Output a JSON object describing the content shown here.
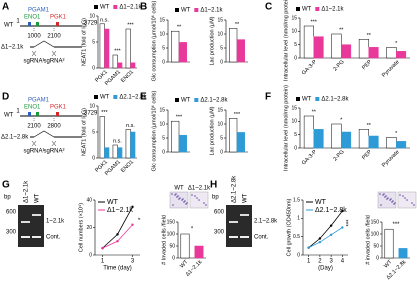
{
  "panel_labels": [
    "A",
    "B",
    "C",
    "D",
    "E",
    "F",
    "G",
    "H"
  ],
  "diagrams": [
    {
      "genes": [
        "PGAM1",
        "ENO1",
        "PGK1"
      ],
      "wt": "WT",
      "start": 1,
      "end": 3729,
      "cut_start": 1000,
      "cut_end": 2100,
      "mutant": "Δ1~2.1k",
      "sgrnas": [
        "sgRNA¹",
        "sgRNA²"
      ]
    },
    {
      "genes": [
        "PGAM1",
        "ENO1",
        "PGK1"
      ],
      "wt": "WT",
      "start": 1,
      "end": 3729,
      "cut_start": 2100,
      "cut_end": 2800,
      "mutant": "Δ2.1~2.8k",
      "sgrnas": [
        "sgRNA¹",
        "sgRNA²"
      ]
    }
  ],
  "gels": [
    {
      "unit": "bp",
      "markers": [
        600,
        300
      ],
      "lanes": [
        "Δ1~2.1k",
        "WT"
      ],
      "bands": [
        "1~2.1k",
        "Cont."
      ],
      "micrographs": [
        "WT",
        "Δ1~2.1k"
      ]
    },
    {
      "unit": "bp",
      "markers": [
        600,
        300
      ],
      "lanes": [
        "Δ2.1~2.8k",
        "WT"
      ],
      "bands": [
        "2.1~2.8k",
        "Cont."
      ]
    }
  ],
  "chart_data": [
    {
      "type": "bar",
      "ylabel": "NEAT1 (fold of IgG)",
      "categories": [
        "PGK1",
        "PGAM1",
        "ENO1"
      ],
      "ylim": [
        0,
        10
      ],
      "yticks": [
        0,
        5,
        10
      ],
      "legend": "above",
      "series": [
        {
          "name": "WT",
          "color": "#ffffff",
          "values": [
            8.5,
            2.5,
            7.5
          ]
        },
        {
          "name": "Δ1~2.1k",
          "color": "#e8389a",
          "values": [
            7.5,
            1.0,
            1.0
          ]
        }
      ],
      "annotations": [
        "n.s.",
        "***",
        "***"
      ]
    },
    {
      "type": "bar",
      "ylabel": "Glc consumption (µmol/10⁶ cells)",
      "categories": [
        null
      ],
      "ylim": [
        0,
        15
      ],
      "yticks": [
        0,
        5,
        10,
        15
      ],
      "legend": "above",
      "series": [
        {
          "name": "WT",
          "color": "#ffffff",
          "values": [
            11
          ]
        },
        {
          "name": "Δ1~2.1k",
          "color": "#e8389a",
          "values": [
            7
          ]
        }
      ],
      "annotations": [
        "**"
      ]
    },
    {
      "type": "bar",
      "ylabel": "Lac production (µM)",
      "categories": [
        null
      ],
      "ylim": [
        0,
        15
      ],
      "yticks": [
        0,
        5,
        10,
        15
      ],
      "series": [
        {
          "color": "#ffffff",
          "values": [
            12
          ]
        },
        {
          "color": "#e8389a",
          "values": [
            8
          ]
        }
      ],
      "annotations": [
        "**"
      ]
    },
    {
      "type": "bar",
      "ylabel": "Intracellular level (nmol/mg protein)",
      "categories": [
        "GA-3-P",
        "2-PG",
        "PEP",
        "Pyruvate"
      ],
      "ylim": [
        0,
        15
      ],
      "yticks": [
        0,
        5,
        10,
        15
      ],
      "legend": "above",
      "series": [
        {
          "name": "WT",
          "color": "#ffffff",
          "values": [
            12,
            9,
            7,
            4
          ]
        },
        {
          "name": "Δ1~2.1k",
          "color": "#e8389a",
          "values": [
            8,
            5,
            4,
            2.5
          ]
        }
      ],
      "annotations": [
        "***",
        "**",
        "**",
        "*"
      ]
    },
    {
      "type": "bar",
      "ylabel": "NEAT1 (fold of IgG)",
      "categories": [
        "PGK1",
        "PGAM1",
        "ENO1"
      ],
      "ylim": [
        0,
        10
      ],
      "yticks": [
        0,
        5,
        10
      ],
      "legend": "above",
      "series": [
        {
          "name": "WT",
          "color": "#ffffff",
          "values": [
            8,
            2.5,
            5.5
          ]
        },
        {
          "name": "Δ2.1~2.8k",
          "color": "#2f9bd6",
          "values": [
            2,
            2,
            5
          ]
        }
      ],
      "annotations": [
        "***",
        "n.s.",
        "n.s."
      ]
    },
    {
      "type": "bar",
      "ylabel": "Glc consumption (µmol/10⁶ cells)",
      "categories": [
        null
      ],
      "ylim": [
        0,
        15
      ],
      "yticks": [
        0,
        5,
        10,
        15
      ],
      "legend": "above",
      "series": [
        {
          "name": "WT",
          "color": "#ffffff",
          "values": [
            11
          ]
        },
        {
          "name": "Δ2.1~2.8k",
          "color": "#2f9bd6",
          "values": [
            6
          ]
        }
      ],
      "annotations": [
        "***"
      ]
    },
    {
      "type": "bar",
      "ylabel": "Lac production (µM)",
      "categories": [
        null
      ],
      "ylim": [
        0,
        15
      ],
      "yticks": [
        0,
        5,
        10,
        15
      ],
      "series": [
        {
          "color": "#ffffff",
          "values": [
            12
          ]
        },
        {
          "color": "#2f9bd6",
          "values": [
            7
          ]
        }
      ],
      "annotations": [
        "***"
      ]
    },
    {
      "type": "bar",
      "ylabel": "Intracellular level (nmol/mg protein)",
      "categories": [
        "GA-3-P",
        "2-PG",
        "PEP",
        "Pyruvate"
      ],
      "ylim": [
        0,
        15
      ],
      "yticks": [
        0,
        5,
        10,
        15
      ],
      "legend": "above",
      "series": [
        {
          "name": "WT",
          "color": "#ffffff",
          "values": [
            12,
            9,
            7,
            4
          ]
        },
        {
          "name": "Δ2.1~2.8k",
          "color": "#2f9bd6",
          "values": [
            7,
            6,
            4.5,
            2.5
          ]
        }
      ],
      "annotations": [
        "**",
        "*",
        "**",
        "*"
      ]
    },
    {
      "type": "line",
      "ylabel": "Cell numbers (×10⁴)",
      "xlabel": "Time (day)",
      "x": [
        1,
        2,
        3
      ],
      "xlim": [
        0.5,
        3.5
      ],
      "xticks": [
        1,
        3
      ],
      "ylim": [
        0,
        40
      ],
      "yticks": [
        0,
        20,
        40
      ],
      "legend": "upper left",
      "series": [
        {
          "name": "WT",
          "color": "#000000",
          "values": [
            5,
            15,
            35
          ]
        },
        {
          "name": "Δ1~2.1k",
          "color": "#e8389a",
          "values": [
            5,
            10,
            22
          ]
        }
      ],
      "annotation": "*"
    },
    {
      "type": "bar",
      "ylabel": "# Invaded cells /field",
      "categories": [
        "WT",
        "Δ1~2.1k"
      ],
      "ylim": [
        0,
        150
      ],
      "yticks": [
        0,
        50,
        100,
        150
      ],
      "series": [
        {
          "color": "#ffffff",
          "values": [
            100,
            null
          ]
        },
        {
          "color": "#e8389a",
          "values": [
            null,
            50
          ]
        }
      ],
      "annotation": "*"
    },
    {
      "type": "line",
      "ylabel": "Cell growth (OD450nm)",
      "xlabel": "(Day)",
      "x": [
        1,
        2,
        3,
        4
      ],
      "xlim": [
        0.5,
        4.5
      ],
      "xticks": [
        1,
        2,
        3,
        4
      ],
      "ylim": [
        0,
        1.5
      ],
      "yticks": [
        0,
        0.5,
        1,
        1.5
      ],
      "legend": "upper left",
      "series": [
        {
          "name": "WT",
          "color": "#000000",
          "values": [
            0.2,
            0.45,
            0.8,
            1.2
          ]
        },
        {
          "name": "Δ2.1~2.8k",
          "color": "#2f9bd6",
          "values": [
            0.2,
            0.35,
            0.55,
            0.75
          ]
        }
      ],
      "annotation": "***"
    },
    {
      "type": "bar",
      "ylabel": "# invaded cells /field",
      "categories": [
        "WT",
        "Δ2.1~2.8k"
      ],
      "ylim": [
        0,
        150
      ],
      "yticks": [
        0,
        50,
        100,
        150
      ],
      "series": [
        {
          "color": "#ffffff",
          "values": [
            120,
            null
          ]
        },
        {
          "color": "#2f9bd6",
          "values": [
            null,
            40
          ]
        }
      ],
      "annotation": "***"
    }
  ]
}
